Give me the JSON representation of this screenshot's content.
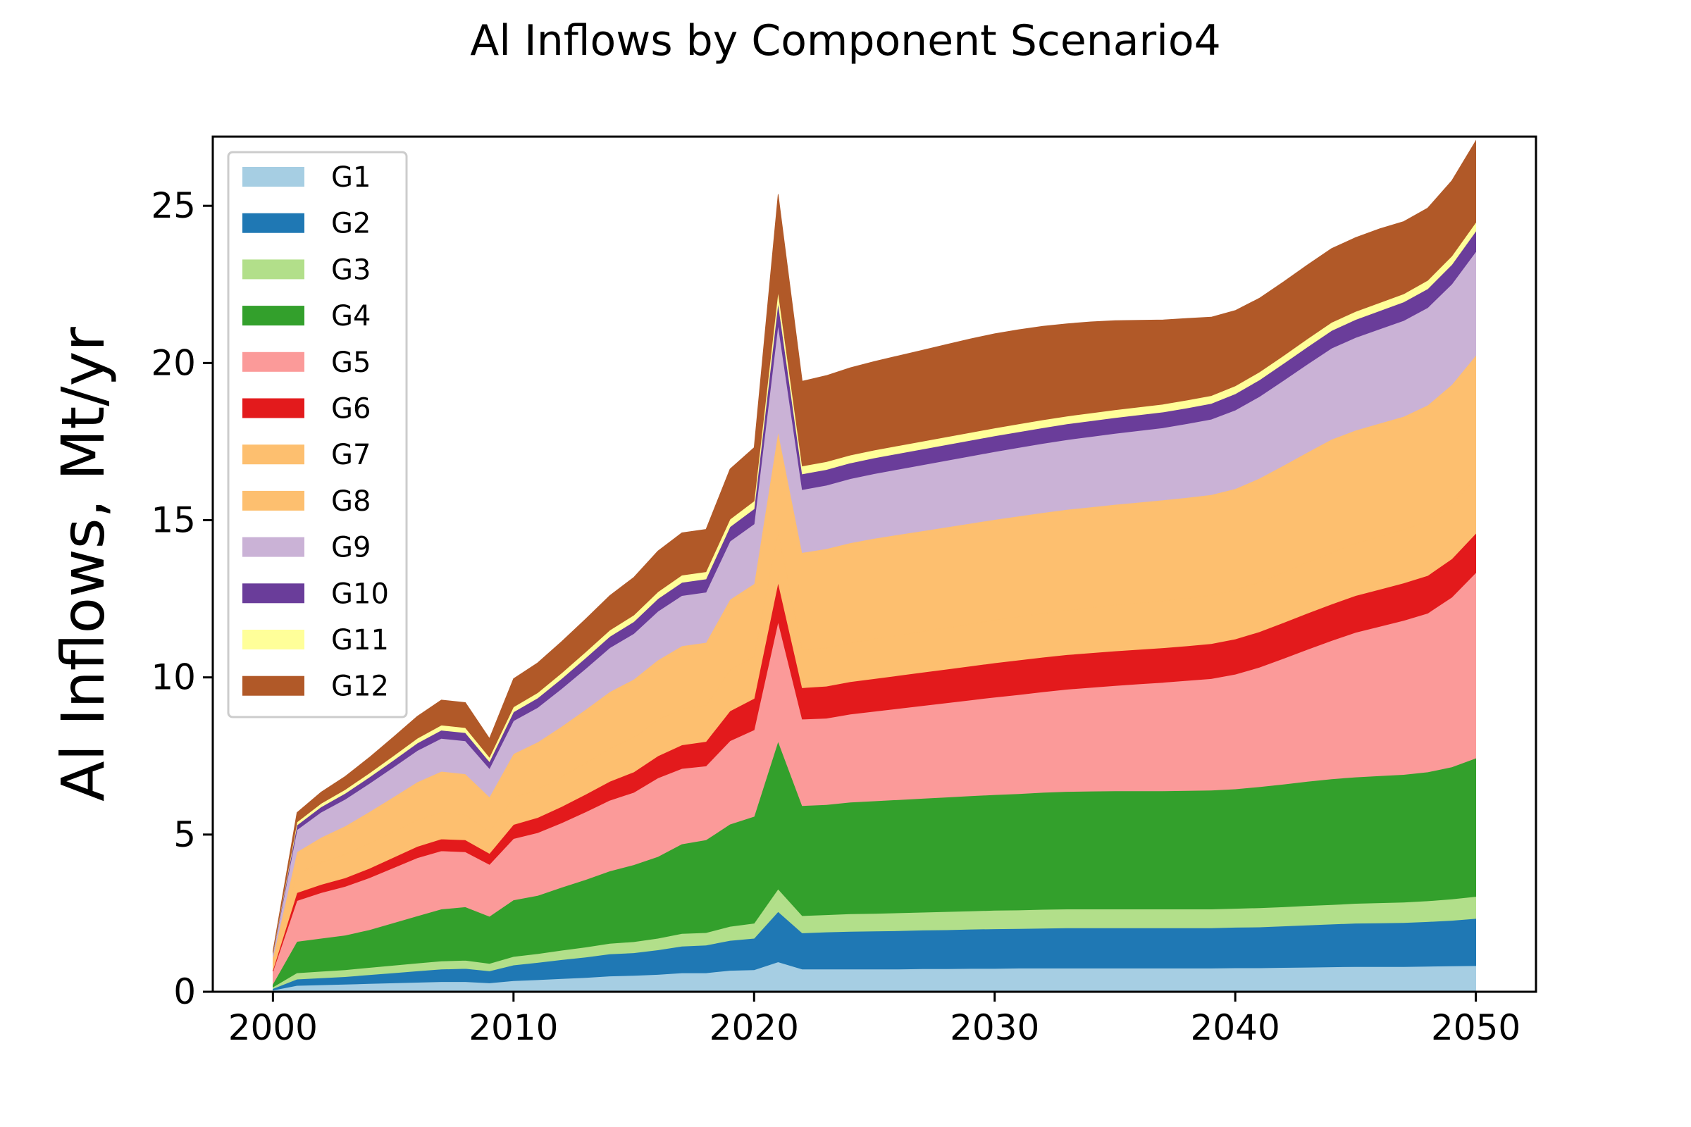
{
  "chart_data": {
    "type": "area",
    "stacked": true,
    "title": "Al Inflows by Component Scenario4",
    "xlabel": "",
    "ylabel": "Al Inflows, Mt/yr",
    "xlim": [
      1997.5,
      2052.5
    ],
    "ylim": [
      0,
      27.2
    ],
    "xticks": [
      2000,
      2010,
      2020,
      2030,
      2040,
      2050
    ],
    "yticks": [
      0,
      5,
      10,
      15,
      20,
      25
    ],
    "grid": false,
    "legend_position": "upper-left",
    "x": [
      2000,
      2001,
      2002,
      2003,
      2004,
      2005,
      2006,
      2007,
      2008,
      2009,
      2010,
      2011,
      2012,
      2013,
      2014,
      2015,
      2016,
      2017,
      2018,
      2019,
      2020,
      2021,
      2022,
      2023,
      2024,
      2025,
      2026,
      2027,
      2028,
      2029,
      2030,
      2031,
      2032,
      2033,
      2034,
      2035,
      2036,
      2037,
      2038,
      2039,
      2040,
      2041,
      2042,
      2043,
      2044,
      2045,
      2046,
      2047,
      2048,
      2049,
      2050
    ],
    "series": [
      {
        "name": "G1",
        "color": "#a6cee3",
        "values": [
          0.05,
          0.2,
          0.22,
          0.24,
          0.26,
          0.28,
          0.3,
          0.32,
          0.32,
          0.28,
          0.35,
          0.38,
          0.42,
          0.45,
          0.5,
          0.52,
          0.55,
          0.6,
          0.6,
          0.68,
          0.7,
          0.95,
          0.72,
          0.72,
          0.72,
          0.72,
          0.72,
          0.73,
          0.73,
          0.74,
          0.74,
          0.75,
          0.75,
          0.75,
          0.75,
          0.75,
          0.75,
          0.75,
          0.75,
          0.75,
          0.76,
          0.76,
          0.77,
          0.78,
          0.79,
          0.8,
          0.8,
          0.8,
          0.81,
          0.82,
          0.83
        ]
      },
      {
        "name": "G2",
        "color": "#1f78b4",
        "values": [
          0.05,
          0.2,
          0.22,
          0.24,
          0.28,
          0.32,
          0.36,
          0.4,
          0.42,
          0.38,
          0.5,
          0.55,
          0.6,
          0.65,
          0.7,
          0.72,
          0.78,
          0.85,
          0.88,
          0.95,
          1.0,
          1.6,
          1.15,
          1.18,
          1.2,
          1.21,
          1.22,
          1.23,
          1.24,
          1.25,
          1.26,
          1.26,
          1.27,
          1.28,
          1.28,
          1.28,
          1.28,
          1.28,
          1.28,
          1.28,
          1.29,
          1.3,
          1.32,
          1.34,
          1.36,
          1.38,
          1.39,
          1.4,
          1.42,
          1.45,
          1.5
        ]
      },
      {
        "name": "G3",
        "color": "#b2df8a",
        "values": [
          0.05,
          0.2,
          0.21,
          0.22,
          0.23,
          0.24,
          0.25,
          0.26,
          0.26,
          0.24,
          0.27,
          0.28,
          0.3,
          0.32,
          0.34,
          0.35,
          0.37,
          0.4,
          0.4,
          0.45,
          0.48,
          0.72,
          0.55,
          0.55,
          0.56,
          0.56,
          0.57,
          0.57,
          0.58,
          0.58,
          0.59,
          0.59,
          0.6,
          0.6,
          0.6,
          0.6,
          0.6,
          0.6,
          0.6,
          0.6,
          0.6,
          0.61,
          0.61,
          0.62,
          0.62,
          0.63,
          0.64,
          0.65,
          0.66,
          0.68,
          0.7
        ]
      },
      {
        "name": "G4",
        "color": "#33a02c",
        "values": [
          0.1,
          1.0,
          1.05,
          1.1,
          1.2,
          1.35,
          1.5,
          1.65,
          1.7,
          1.5,
          1.8,
          1.85,
          2.0,
          2.15,
          2.3,
          2.45,
          2.6,
          2.85,
          2.95,
          3.25,
          3.4,
          4.7,
          3.5,
          3.5,
          3.55,
          3.58,
          3.6,
          3.62,
          3.64,
          3.66,
          3.68,
          3.7,
          3.72,
          3.74,
          3.75,
          3.76,
          3.76,
          3.76,
          3.77,
          3.78,
          3.8,
          3.85,
          3.9,
          3.95,
          4.0,
          4.02,
          4.04,
          4.06,
          4.1,
          4.2,
          4.4
        ]
      },
      {
        "name": "G5",
        "color": "#fb9a99",
        "values": [
          0.4,
          1.3,
          1.45,
          1.55,
          1.65,
          1.75,
          1.85,
          1.85,
          1.75,
          1.65,
          1.95,
          2.0,
          2.05,
          2.15,
          2.25,
          2.3,
          2.5,
          2.4,
          2.35,
          2.65,
          2.75,
          3.8,
          2.75,
          2.75,
          2.8,
          2.85,
          2.9,
          2.95,
          3.0,
          3.05,
          3.1,
          3.15,
          3.2,
          3.25,
          3.3,
          3.35,
          3.4,
          3.45,
          3.5,
          3.55,
          3.65,
          3.8,
          4.0,
          4.2,
          4.4,
          4.6,
          4.75,
          4.9,
          5.05,
          5.4,
          5.9
        ]
      },
      {
        "name": "G6",
        "color": "#e31a1c",
        "values": [
          0.05,
          0.25,
          0.26,
          0.27,
          0.3,
          0.33,
          0.36,
          0.38,
          0.38,
          0.35,
          0.45,
          0.48,
          0.52,
          0.56,
          0.6,
          0.65,
          0.7,
          0.75,
          0.78,
          0.95,
          1.0,
          1.25,
          1.0,
          1.02,
          1.03,
          1.04,
          1.05,
          1.06,
          1.07,
          1.08,
          1.09,
          1.1,
          1.1,
          1.1,
          1.1,
          1.1,
          1.1,
          1.1,
          1.1,
          1.11,
          1.12,
          1.13,
          1.14,
          1.15,
          1.16,
          1.17,
          1.18,
          1.19,
          1.2,
          1.22,
          1.25
        ]
      },
      {
        "name": "G7",
        "color": "#fdbf6f",
        "values": [
          0.2,
          0.6,
          0.7,
          0.75,
          0.8,
          0.82,
          0.85,
          0.85,
          0.8,
          0.7,
          0.85,
          0.9,
          0.95,
          1.0,
          1.05,
          1.1,
          1.15,
          1.15,
          1.15,
          1.3,
          1.35,
          1.6,
          1.2,
          1.22,
          1.24,
          1.26,
          1.28,
          1.3,
          1.32,
          1.34,
          1.36,
          1.38,
          1.4,
          1.42,
          1.44,
          1.46,
          1.48,
          1.5,
          1.52,
          1.54,
          1.56,
          1.58,
          1.6,
          1.62,
          1.64,
          1.66,
          1.68,
          1.7,
          1.72,
          1.74,
          1.76
        ]
      },
      {
        "name": "G8",
        "color": "#fdbf6f",
        "values": [
          0.2,
          0.7,
          0.8,
          0.9,
          1.0,
          1.1,
          1.2,
          1.3,
          1.3,
          1.1,
          1.4,
          1.5,
          1.6,
          1.7,
          1.8,
          1.85,
          1.9,
          2.0,
          2.0,
          2.25,
          2.3,
          3.2,
          3.1,
          3.15,
          3.18,
          3.2,
          3.2,
          3.2,
          3.2,
          3.2,
          3.2,
          3.2,
          3.2,
          3.2,
          3.2,
          3.2,
          3.2,
          3.2,
          3.2,
          3.2,
          3.22,
          3.3,
          3.4,
          3.5,
          3.6,
          3.6,
          3.6,
          3.6,
          3.7,
          3.8,
          3.9
        ]
      },
      {
        "name": "G9",
        "color": "#cab2d6",
        "values": [
          0.1,
          0.7,
          0.8,
          0.85,
          0.9,
          0.95,
          1.0,
          1.05,
          1.05,
          0.9,
          1.05,
          1.1,
          1.2,
          1.3,
          1.4,
          1.45,
          1.55,
          1.6,
          1.6,
          1.85,
          1.9,
          3.4,
          2.0,
          2.02,
          2.04,
          2.06,
          2.08,
          2.1,
          2.12,
          2.14,
          2.16,
          2.18,
          2.2,
          2.22,
          2.24,
          2.26,
          2.28,
          2.3,
          2.35,
          2.4,
          2.5,
          2.6,
          2.7,
          2.8,
          2.9,
          2.95,
          3.0,
          3.05,
          3.1,
          3.2,
          3.3
        ]
      },
      {
        "name": "G10",
        "color": "#6a3d9a",
        "values": [
          0.02,
          0.15,
          0.17,
          0.19,
          0.2,
          0.22,
          0.24,
          0.26,
          0.26,
          0.22,
          0.28,
          0.3,
          0.32,
          0.34,
          0.36,
          0.38,
          0.4,
          0.42,
          0.42,
          0.46,
          0.48,
          0.7,
          0.5,
          0.5,
          0.5,
          0.5,
          0.5,
          0.5,
          0.5,
          0.5,
          0.5,
          0.5,
          0.5,
          0.5,
          0.5,
          0.5,
          0.5,
          0.5,
          0.5,
          0.5,
          0.52,
          0.53,
          0.54,
          0.55,
          0.56,
          0.57,
          0.58,
          0.59,
          0.6,
          0.62,
          0.65
        ]
      },
      {
        "name": "G11",
        "color": "#ffff99",
        "values": [
          0.02,
          0.1,
          0.11,
          0.12,
          0.13,
          0.14,
          0.15,
          0.16,
          0.16,
          0.14,
          0.16,
          0.17,
          0.18,
          0.19,
          0.2,
          0.21,
          0.22,
          0.23,
          0.23,
          0.24,
          0.25,
          0.35,
          0.25,
          0.25,
          0.25,
          0.25,
          0.25,
          0.25,
          0.25,
          0.25,
          0.25,
          0.25,
          0.25,
          0.25,
          0.25,
          0.25,
          0.25,
          0.25,
          0.25,
          0.25,
          0.25,
          0.25,
          0.25,
          0.26,
          0.26,
          0.26,
          0.26,
          0.26,
          0.27,
          0.27,
          0.28
        ]
      },
      {
        "name": "G12",
        "color": "#b15928",
        "values": [
          0.05,
          0.3,
          0.36,
          0.42,
          0.5,
          0.6,
          0.7,
          0.8,
          0.8,
          0.6,
          0.9,
          0.95,
          1.0,
          1.05,
          1.1,
          1.2,
          1.3,
          1.35,
          1.35,
          1.6,
          1.7,
          3.1,
          2.7,
          2.74,
          2.78,
          2.82,
          2.86,
          2.9,
          2.94,
          2.98,
          3.0,
          3.0,
          2.98,
          2.94,
          2.9,
          2.84,
          2.76,
          2.68,
          2.6,
          2.5,
          2.4,
          2.35,
          2.35,
          2.35,
          2.35,
          2.35,
          2.35,
          2.3,
          2.3,
          2.4,
          2.6
        ]
      }
    ]
  }
}
